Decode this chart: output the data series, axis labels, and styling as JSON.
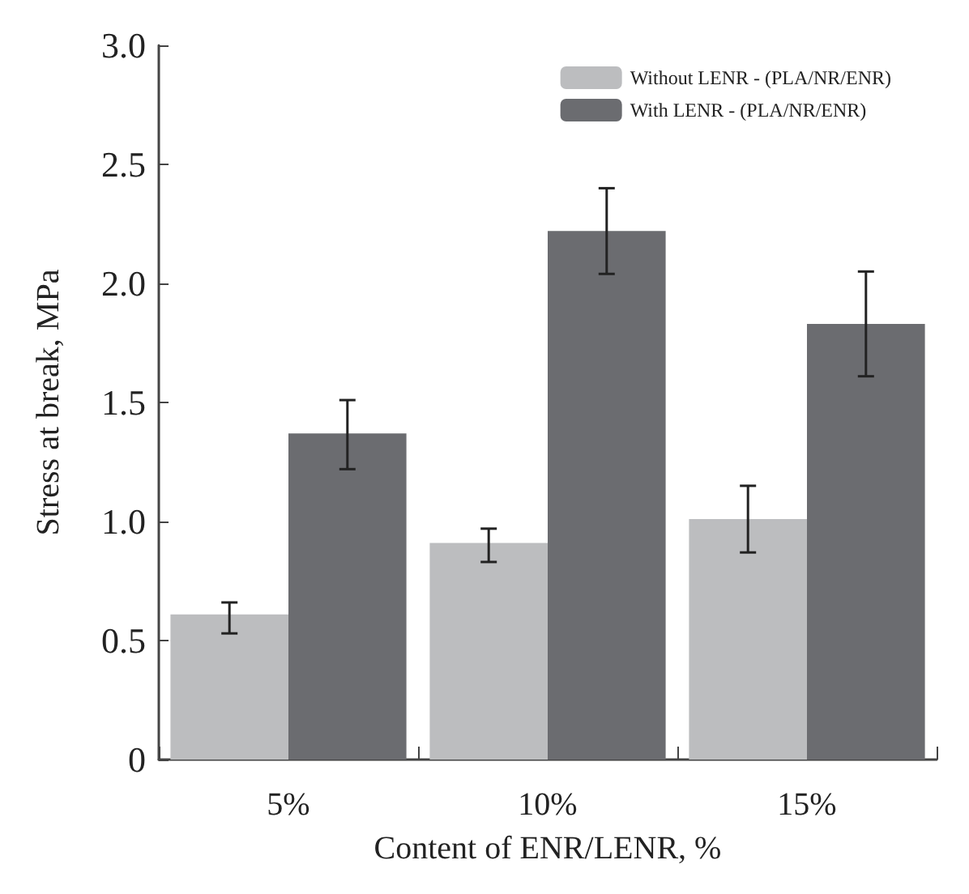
{
  "chart_data": {
    "type": "bar",
    "xlabel": "Content of ENR/LENR, %",
    "ylabel": "Stress at break, MPa",
    "categories": [
      "5%",
      "10%",
      "15%"
    ],
    "series": [
      {
        "name": "Without LENR - (PLA/NR/ENR)",
        "color": "#bcbdbf",
        "values": [
          0.61,
          0.91,
          1.01
        ],
        "errors": [
          [
            0.53,
            0.66
          ],
          [
            0.83,
            0.97
          ],
          [
            0.87,
            1.15
          ]
        ]
      },
      {
        "name": "With LENR - (PLA/NR/ENR)",
        "color": "#6b6c70",
        "values": [
          1.37,
          2.22,
          1.83
        ],
        "errors": [
          [
            1.22,
            1.51
          ],
          [
            2.04,
            2.4
          ],
          [
            1.61,
            2.05
          ]
        ]
      }
    ],
    "ylim": [
      0,
      3
    ],
    "yticks": [
      {
        "value": 0,
        "label": "0"
      },
      {
        "value": 0.5,
        "label": "0.5"
      },
      {
        "value": 1,
        "label": "1.0"
      },
      {
        "value": 1.5,
        "label": "1.5"
      },
      {
        "value": 2,
        "label": "2.0"
      },
      {
        "value": 2.5,
        "label": "2.5"
      },
      {
        "value": 3,
        "label": "3.0"
      }
    ],
    "grid": false,
    "legend": "top right"
  }
}
